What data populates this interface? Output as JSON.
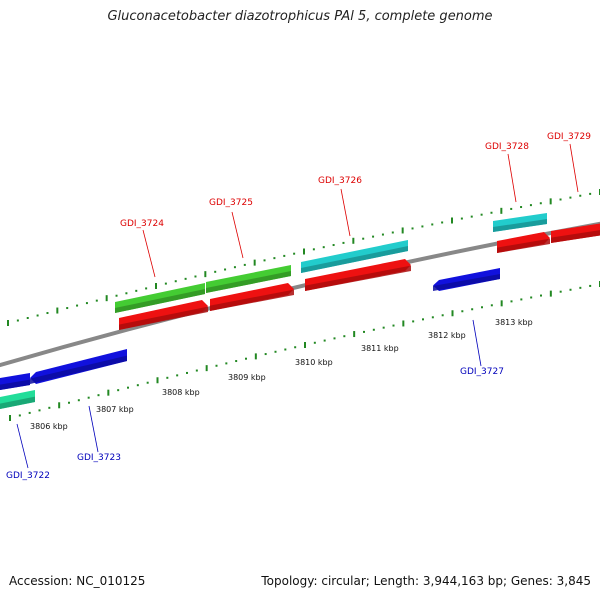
{
  "title": "Gluconacetobacter diazotrophicus PAl 5, complete genome",
  "footer": {
    "accession": "Accession: NC_010125",
    "summary": "Topology: circular; Length: 3,944,163 bp; Genes: 3,845"
  },
  "ticks": [
    {
      "label": "3806 kbp"
    },
    {
      "label": "3807 kbp"
    },
    {
      "label": "3808 kbp"
    },
    {
      "label": "3809 kbp"
    },
    {
      "label": "3810 kbp"
    },
    {
      "label": "3811 kbp"
    },
    {
      "label": "3812 kbp"
    },
    {
      "label": "3813 kbp"
    }
  ],
  "genes": [
    {
      "name": "GDI_3722"
    },
    {
      "name": "GDI_3723"
    },
    {
      "name": "GDI_3724"
    },
    {
      "name": "GDI_3725"
    },
    {
      "name": "GDI_3726"
    },
    {
      "name": "GDI_3727"
    },
    {
      "name": "GDI_3728"
    },
    {
      "name": "GDI_3729"
    }
  ],
  "colors": {
    "forward_label": "#dd0000",
    "reverse_label": "#0000bb",
    "red_track": "#ee1111",
    "green_track": "#44cc33",
    "cyan_track": "#22cccc",
    "blue_track": "#1111dd",
    "teal_track": "#22dd99",
    "backbone": "#888888",
    "tick": "#228822"
  }
}
